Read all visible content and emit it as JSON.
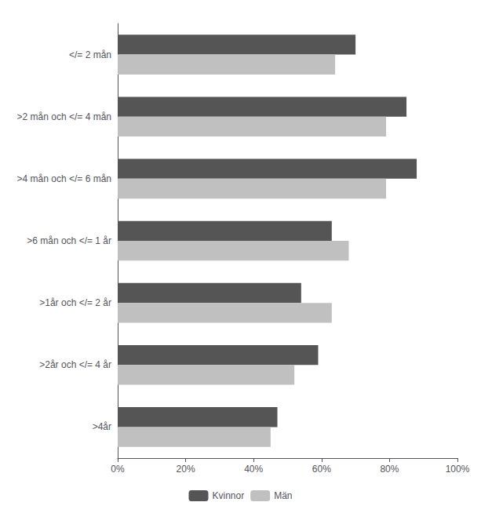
{
  "chart_data": {
    "type": "bar",
    "orientation": "horizontal",
    "categories": [
      "</= 2 mån",
      ">2 mån och </= 4 mån",
      ">4 mån och </= 6 mån",
      ">6 mån och </= 1 år",
      ">1år och </= 2 år",
      ">2år och </= 4 år",
      ">4år"
    ],
    "series": [
      {
        "name": "Kvinnor",
        "color": "#555555",
        "values": [
          70,
          85,
          88,
          63,
          54,
          59,
          47
        ]
      },
      {
        "name": "Män",
        "color": "#c0c0c0",
        "values": [
          64,
          79,
          79,
          68,
          63,
          52,
          45
        ]
      }
    ],
    "xlim": [
      0,
      100
    ],
    "xticks": [
      {
        "value": 0,
        "label": "0%"
      },
      {
        "value": 20,
        "label": "20%"
      },
      {
        "value": 40,
        "label": "40%"
      },
      {
        "value": 60,
        "label": "60%"
      },
      {
        "value": 80,
        "label": "80%"
      },
      {
        "value": 100,
        "label": "100%"
      }
    ],
    "grid": false,
    "legend": "bottom"
  }
}
